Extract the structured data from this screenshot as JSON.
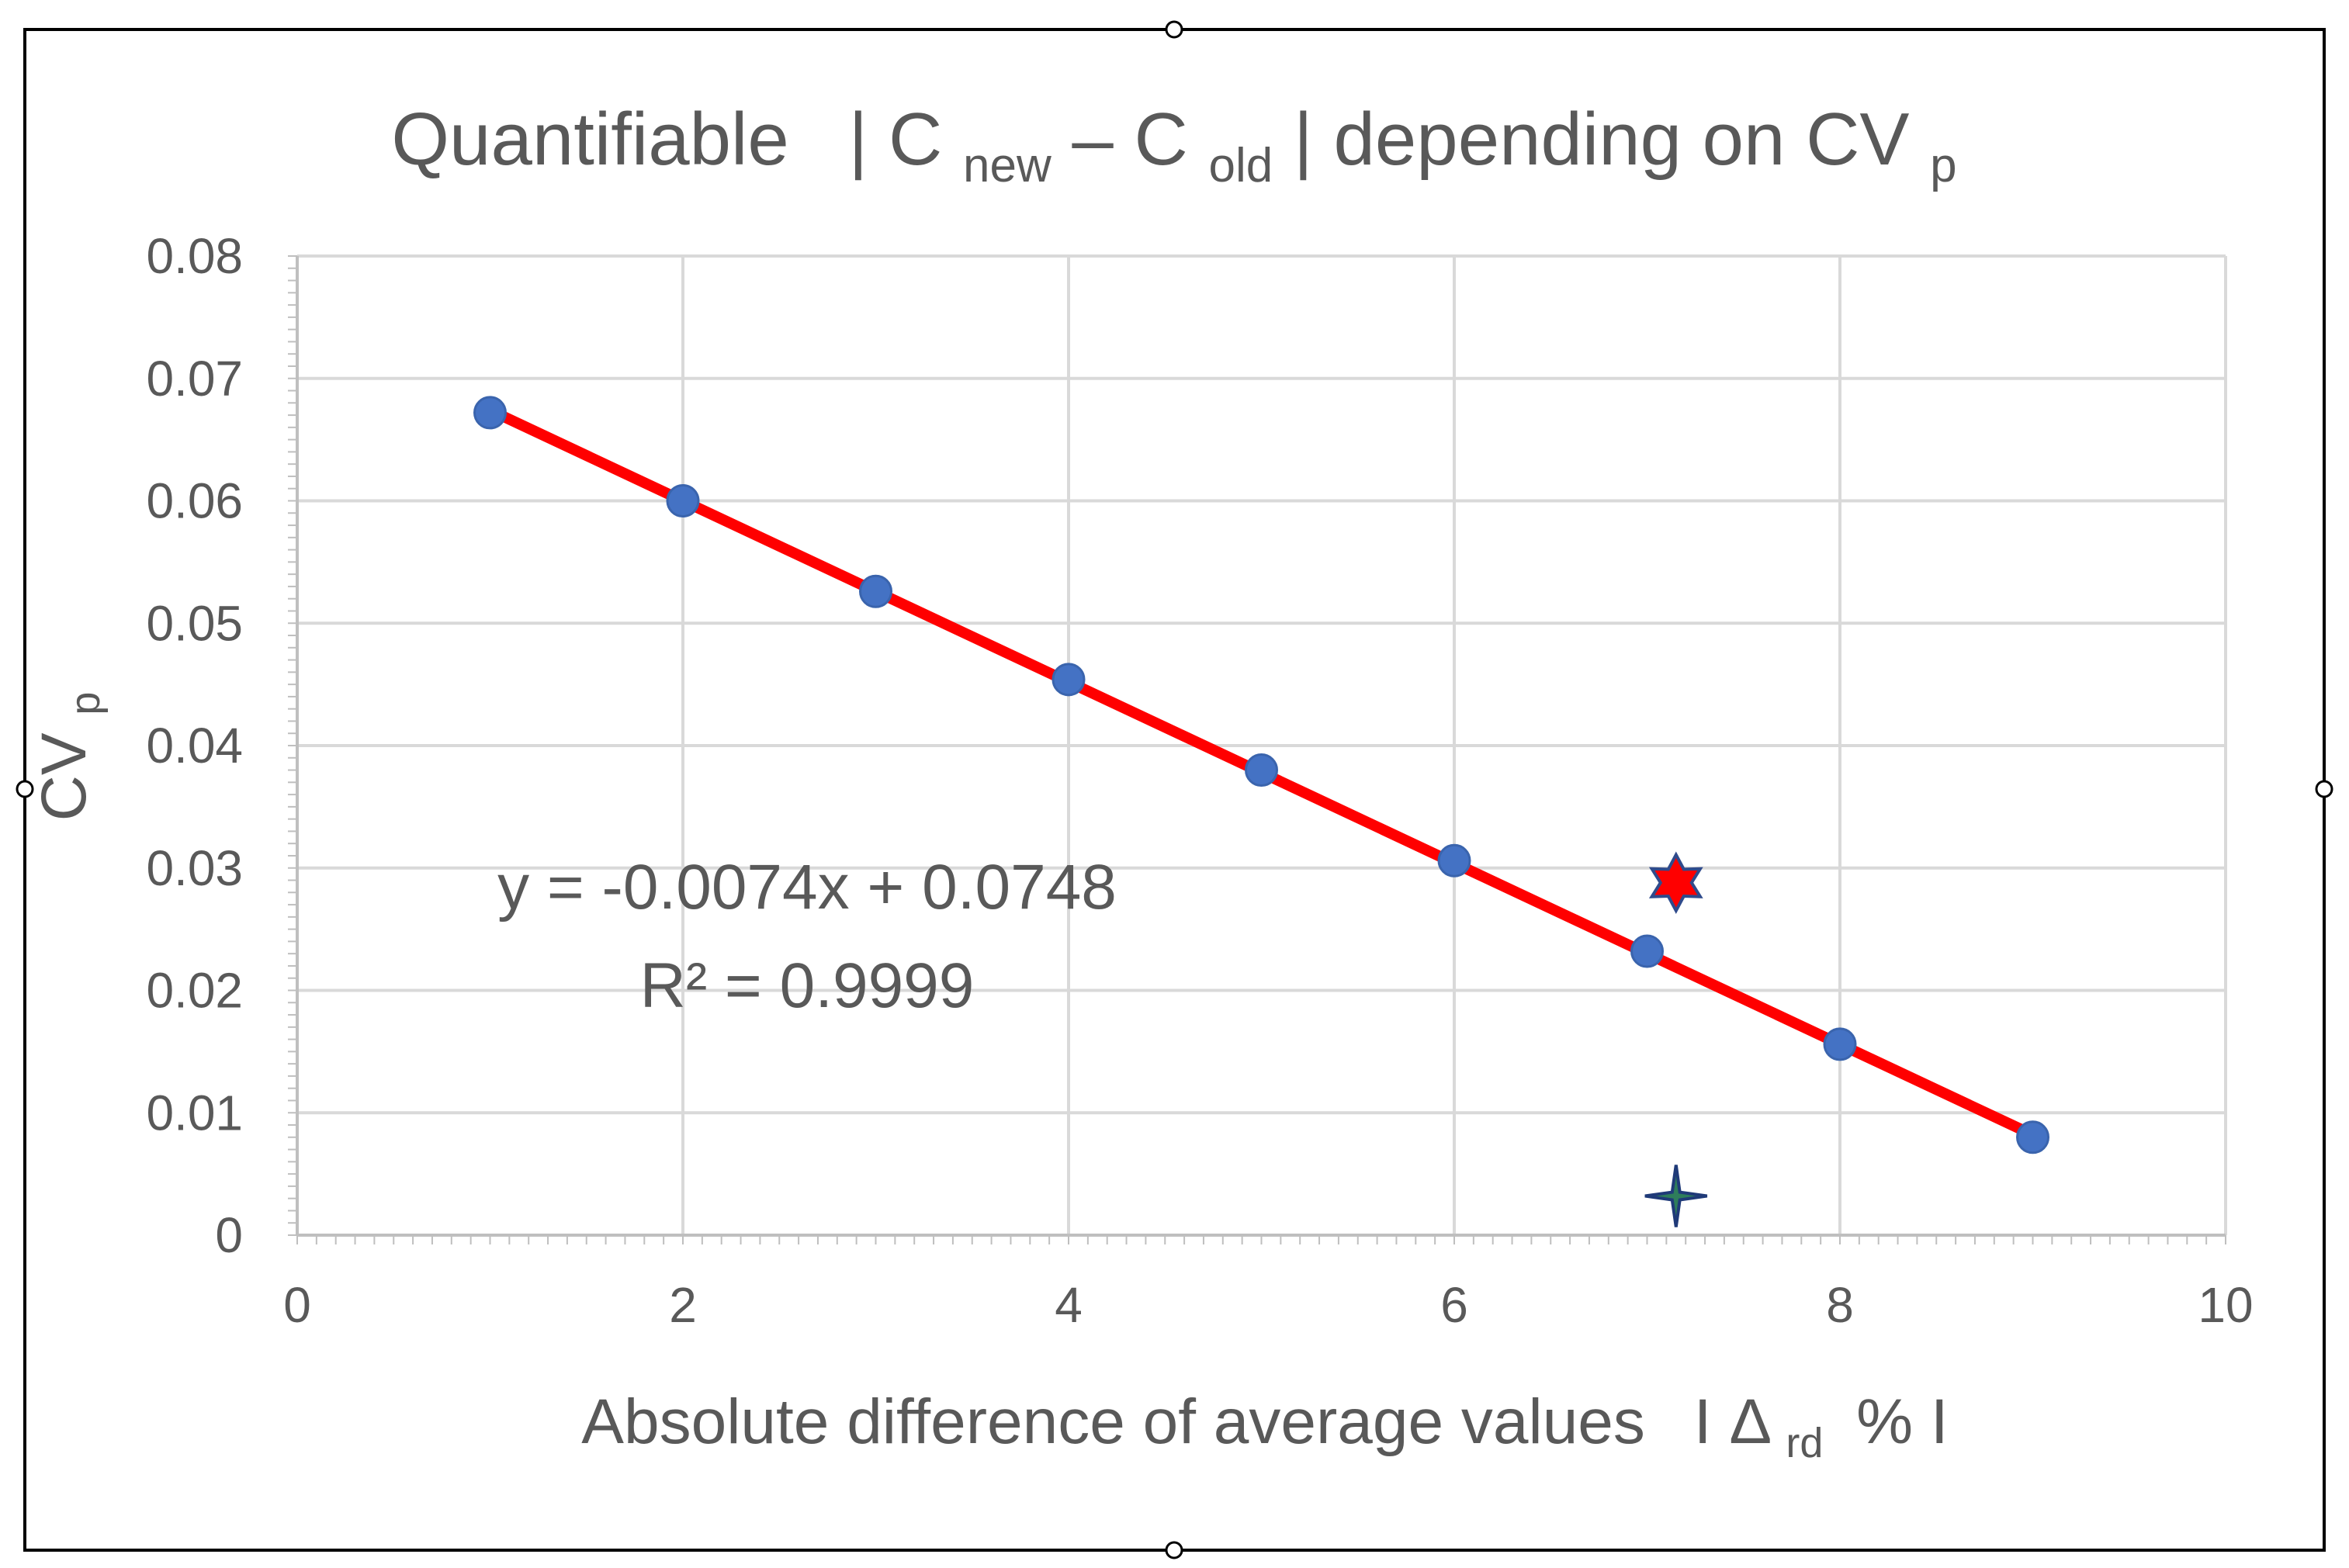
{
  "chart_data": {
    "type": "scatter",
    "title": {
      "prefix": "Quantifiable",
      "c1": "C",
      "c1_sub": "new",
      "minus": "–",
      "c2": "C",
      "c2_sub": "old",
      "suffix": "depending on CV",
      "suffix_sub": "p"
    },
    "xlabel": {
      "main": "Absolute difference of average values",
      "delta": "Δ",
      "delta_sub": "rd",
      "percent": "%"
    },
    "ylabel": {
      "main": "CV",
      "sub": "p"
    },
    "x_ticks": [
      "0",
      "2",
      "4",
      "6",
      "8",
      "10"
    ],
    "y_ticks": [
      "0",
      "0.01",
      "0.02",
      "0.03",
      "0.04",
      "0.05",
      "0.06",
      "0.07",
      "0.08"
    ],
    "xlim": [
      0,
      10
    ],
    "ylim": [
      0,
      0.08
    ],
    "grid": true,
    "series": [
      {
        "marker": "circle",
        "color": "#4472C4",
        "x": [
          1,
          2,
          3,
          4,
          5,
          6,
          7,
          8,
          9
        ],
        "y": [
          0.0672,
          0.06,
          0.0526,
          0.0454,
          0.038,
          0.0306,
          0.0232,
          0.0156,
          0.008
        ]
      },
      {
        "marker": "star",
        "color": "#FF0000",
        "edge_color": "#2F4B8C",
        "x": [
          7.15
        ],
        "y": [
          0.0288
        ]
      },
      {
        "marker": "four-point-star",
        "color": "#2E7D5B",
        "edge_color": "#1F3A78",
        "x": [
          7.15
        ],
        "y": [
          0.0032
        ]
      }
    ],
    "trendline": {
      "color": "#FF0000",
      "slope": -0.0074,
      "intercept": 0.0748,
      "x_range": [
        1,
        9
      ],
      "equation": "y = -0.0074x + 0.0748",
      "r2": "R² = 0.9999"
    }
  }
}
